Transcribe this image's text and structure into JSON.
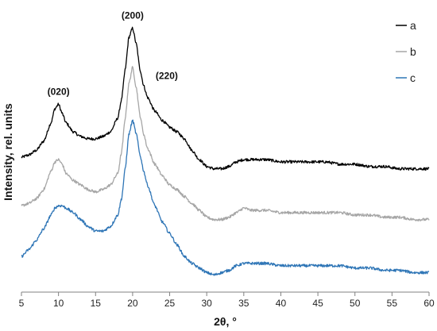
{
  "chart_data": {
    "type": "line",
    "title": "",
    "xlabel": "2θ, °",
    "ylabel": "Intensity, rel. units",
    "xlim": [
      5,
      60
    ],
    "xticks": [
      "5",
      "10",
      "15",
      "20",
      "25",
      "30",
      "35",
      "40",
      "45",
      "50",
      "55",
      "60"
    ],
    "y_tick_labels": false,
    "grid": false,
    "legend_position": "top-right",
    "annotations": [
      {
        "text": "(020)",
        "x": 10.0,
        "series": "a"
      },
      {
        "text": "(200)",
        "x": 20.0,
        "series": "a"
      },
      {
        "text": "(220)",
        "x": 23.0,
        "series": "a"
      }
    ],
    "x": [
      5,
      6,
      7,
      8,
      9,
      9.5,
      10,
      10.5,
      11,
      12,
      13,
      14,
      15,
      16,
      17,
      18,
      18.5,
      19,
      19.5,
      20,
      20.5,
      21,
      21.5,
      22,
      23,
      24,
      25,
      26,
      27,
      28,
      29,
      30,
      31,
      32,
      33,
      34,
      35,
      36,
      38,
      40,
      42,
      44,
      46,
      48,
      50,
      52,
      54,
      56,
      58,
      60
    ],
    "series": [
      {
        "name": "a",
        "color": "#000000",
        "values": [
          0.55,
          0.56,
          0.58,
          0.62,
          0.7,
          0.76,
          0.78,
          0.74,
          0.7,
          0.66,
          0.64,
          0.63,
          0.63,
          0.64,
          0.66,
          0.72,
          0.8,
          0.93,
          1.07,
          1.11,
          1.04,
          0.93,
          0.86,
          0.81,
          0.75,
          0.71,
          0.68,
          0.66,
          0.63,
          0.58,
          0.54,
          0.51,
          0.5,
          0.5,
          0.51,
          0.53,
          0.54,
          0.54,
          0.54,
          0.53,
          0.53,
          0.53,
          0.53,
          0.52,
          0.52,
          0.51,
          0.51,
          0.5,
          0.5,
          0.5
        ]
      },
      {
        "name": "b",
        "color": "#a6a6a6",
        "values": [
          0.34,
          0.35,
          0.37,
          0.41,
          0.49,
          0.53,
          0.54,
          0.52,
          0.48,
          0.45,
          0.43,
          0.41,
          0.4,
          0.41,
          0.43,
          0.48,
          0.57,
          0.72,
          0.87,
          0.94,
          0.85,
          0.73,
          0.65,
          0.59,
          0.52,
          0.47,
          0.43,
          0.41,
          0.38,
          0.35,
          0.32,
          0.29,
          0.28,
          0.28,
          0.29,
          0.31,
          0.33,
          0.32,
          0.32,
          0.31,
          0.31,
          0.31,
          0.31,
          0.31,
          0.3,
          0.3,
          0.29,
          0.29,
          0.28,
          0.28
        ]
      },
      {
        "name": "c",
        "color": "#2e75b6",
        "values": [
          0.12,
          0.15,
          0.19,
          0.24,
          0.3,
          0.33,
          0.34,
          0.34,
          0.33,
          0.31,
          0.28,
          0.25,
          0.23,
          0.23,
          0.25,
          0.3,
          0.37,
          0.5,
          0.65,
          0.71,
          0.65,
          0.56,
          0.49,
          0.43,
          0.34,
          0.27,
          0.22,
          0.17,
          0.12,
          0.09,
          0.07,
          0.05,
          0.04,
          0.05,
          0.06,
          0.08,
          0.09,
          0.09,
          0.09,
          0.08,
          0.08,
          0.08,
          0.08,
          0.08,
          0.07,
          0.07,
          0.06,
          0.06,
          0.05,
          0.05
        ]
      }
    ]
  }
}
